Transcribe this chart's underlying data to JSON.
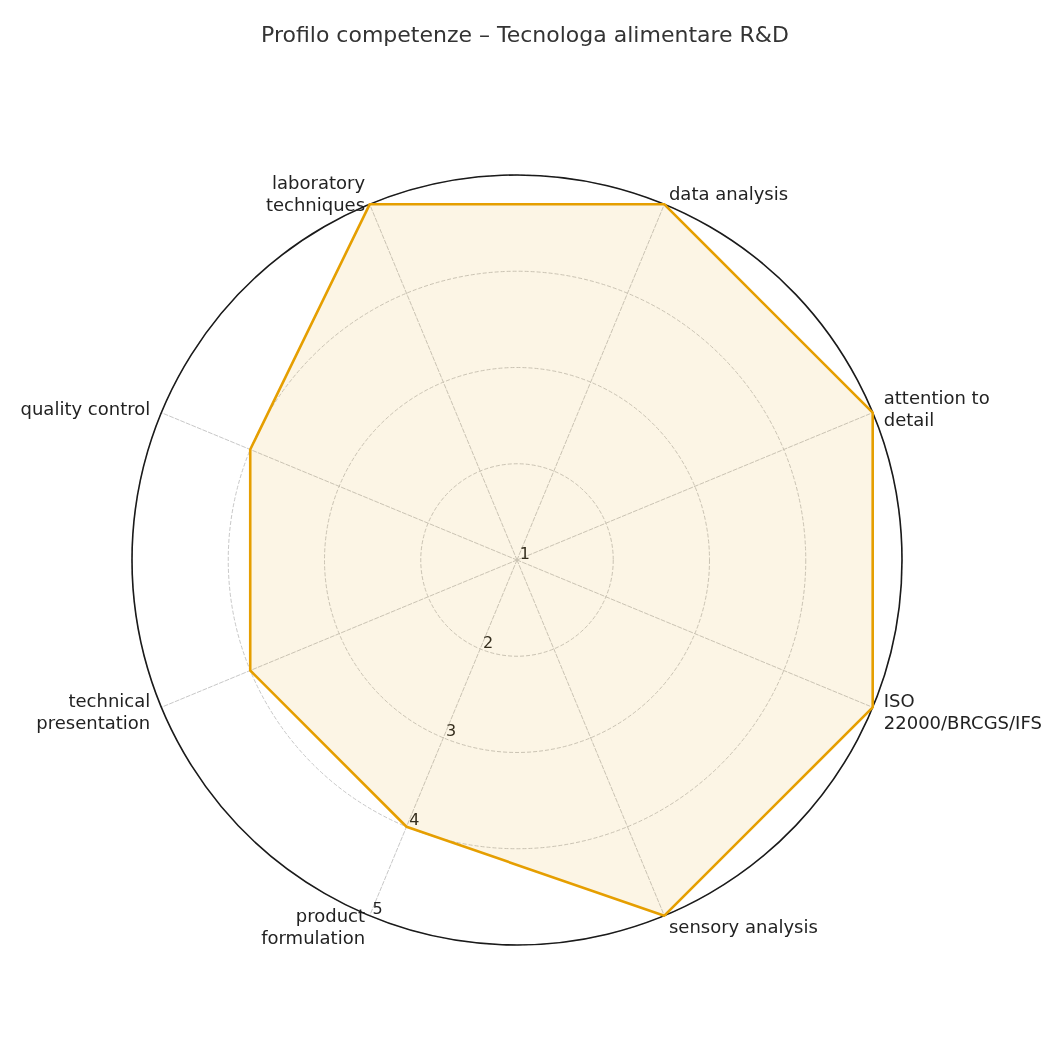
{
  "chart_data": {
    "type": "radar",
    "title": "Profilo competenze – Tecnologa alimentare R&D",
    "categories": [
      "data analysis",
      "attention to detail",
      "ISO 22000/BRCGS/IFS",
      "sensory analysis",
      "product formulation",
      "technical presentation",
      "quality control",
      "laboratory techniques"
    ],
    "series": [
      {
        "color": "#e69f00",
        "values": [
          5,
          5,
          5,
          5,
          4,
          4,
          4,
          5
        ]
      }
    ],
    "ylim": [
      1,
      5
    ],
    "yticks": [
      1,
      2,
      3,
      4,
      5
    ],
    "grid": true
  }
}
